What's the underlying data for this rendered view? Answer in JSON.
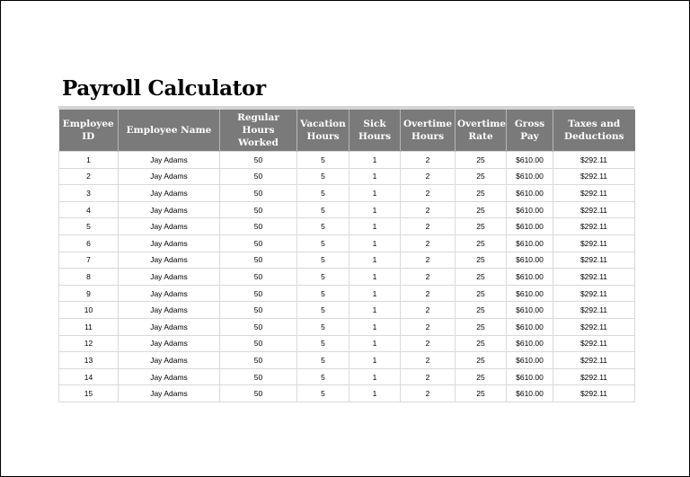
{
  "title": "Payroll Calculator",
  "columns": [
    "Employee ID",
    "Employee Name",
    "Regular Hours Worked",
    "Vacation Hours",
    "Sick Hours",
    "Overtime Hours",
    "Overtime Rate",
    "Gross Pay",
    "Taxes and Deductions"
  ],
  "rows": [
    [
      "1",
      "Jay Adams",
      "50",
      "5",
      "1",
      "2",
      "25",
      "$610.00",
      "$292.11"
    ],
    [
      "2",
      "Jay Adams",
      "50",
      "5",
      "1",
      "2",
      "25",
      "$610.00",
      "$292.11"
    ],
    [
      "3",
      "Jay Adams",
      "50",
      "5",
      "1",
      "2",
      "25",
      "$610.00",
      "$292.11"
    ],
    [
      "4",
      "Jay Adams",
      "50",
      "5",
      "1",
      "2",
      "25",
      "$610.00",
      "$292.11"
    ],
    [
      "5",
      "Jay Adams",
      "50",
      "5",
      "1",
      "2",
      "25",
      "$610.00",
      "$292.11"
    ],
    [
      "6",
      "Jay Adams",
      "50",
      "5",
      "1",
      "2",
      "25",
      "$610.00",
      "$292.11"
    ],
    [
      "7",
      "Jay Adams",
      "50",
      "5",
      "1",
      "2",
      "25",
      "$610.00",
      "$292.11"
    ],
    [
      "8",
      "Jay Adams",
      "50",
      "5",
      "1",
      "2",
      "25",
      "$610.00",
      "$292.11"
    ],
    [
      "9",
      "Jay Adams",
      "50",
      "5",
      "1",
      "2",
      "25",
      "$610.00",
      "$292.11"
    ],
    [
      "10",
      "Jay Adams",
      "50",
      "5",
      "1",
      "2",
      "25",
      "$610.00",
      "$292.11"
    ],
    [
      "11",
      "Jay Adams",
      "50",
      "5",
      "1",
      "2",
      "25",
      "$610.00",
      "$292.11"
    ],
    [
      "12",
      "Jay Adams",
      "50",
      "5",
      "1",
      "2",
      "25",
      "$610.00",
      "$292.11"
    ],
    [
      "13",
      "Jay Adams",
      "50",
      "5",
      "1",
      "2",
      "25",
      "$610.00",
      "$292.11"
    ],
    [
      "14",
      "Jay Adams",
      "50",
      "5",
      "1",
      "2",
      "25",
      "$610.00",
      "$292.11"
    ],
    [
      "15",
      "Jay Adams",
      "50",
      "5",
      "1",
      "2",
      "25",
      "$610.00",
      "$292.11"
    ]
  ],
  "colors": {
    "header_bg": "#7a7a7a",
    "header_text": "#ffffff",
    "title_rule": "#d4d4d4",
    "grid": "#d9d9d9"
  }
}
